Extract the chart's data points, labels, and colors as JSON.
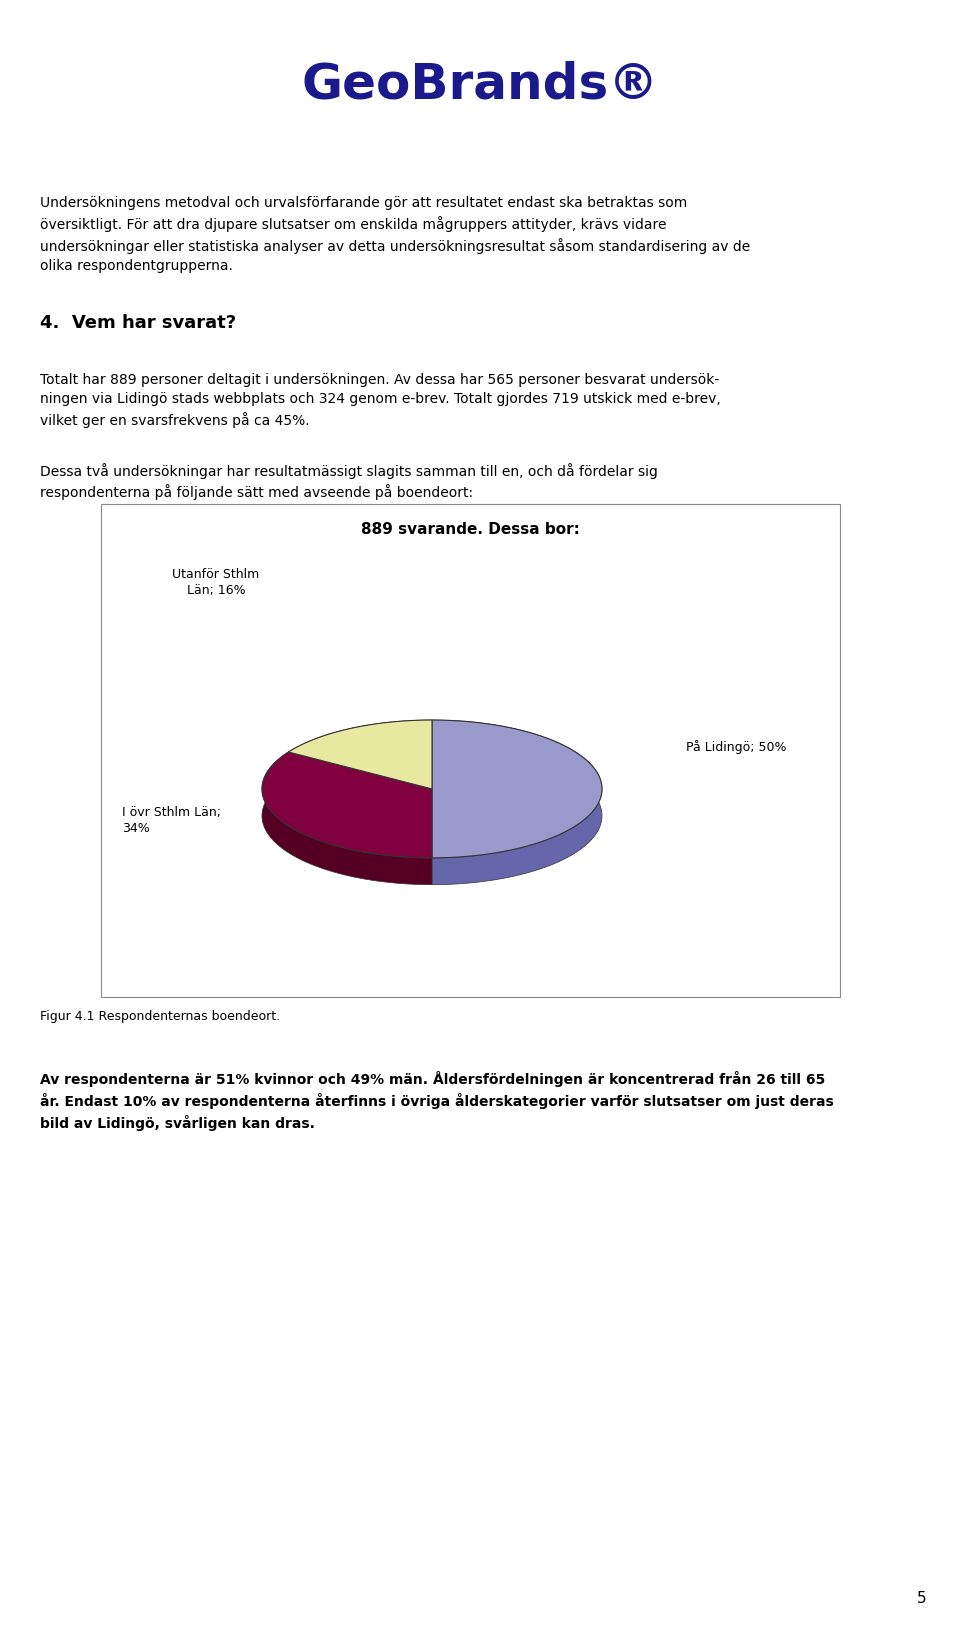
{
  "logo_text": "GeoBrands®",
  "logo_color": "#1a1a8c",
  "page_number": "5",
  "body_text_1a": "Undersökningens metodval och urvalsförfarande gör att resultatet endast ska betraktas som",
  "body_text_1b": "översiktligt. För att dra djupare slutsatser om enskilda mågruppers attityder, krävs vidare",
  "body_text_1c": "undersökningar eller statistiska analyser av detta undersökningsresultat såsom ",
  "body_text_1italic": "standardisering",
  "body_text_1d": " av de",
  "body_text_1e": "olika respondentgrupperna.",
  "section_heading": "4.  Vem har svarat?",
  "body_text_2": "Totalt har 889 personer deltagit i undersökningen. Av dessa har 565 personer besvarat undersök-\nningen via Lidingö stads webbplats och 324 genom e-brev. Totalt gjordes 719 utskick med e-brev,\nvilket ger en svarsfrekvens på ca 45%.",
  "body_text_3": "Dessa två undersökningar har resultatmässigt slagits samman till en, och då fördelar sig\nrespondenterna på följande sätt med avseende på boendeort:",
  "chart_title": "889 svarande. Dessa bor:",
  "pie_values": [
    50,
    34,
    16
  ],
  "pie_colors": [
    "#9999cc",
    "#800040",
    "#e8e8a0"
  ],
  "pie_shadow_colors": [
    "#6666aa",
    "#550022",
    "#b0b060"
  ],
  "pie_label_1": "På Lidingö; 50%",
  "pie_label_2": "I övr Sthlm Län;\n34%",
  "pie_label_3": "Utanför Sthlm\nLän; 16%",
  "figure_caption": "Figur 4.1 Respondenternas boendeort.",
  "body_text_4": "Av respondenterna är 51% kvinnor och 49% män. Åldersfördelningen är koncentrerad från 26 till 65\når. Endast 10% av respondenterna återfinns i övriga ålderskategorier varför slutsatser om just deras\nbild av Lidingö, svårligen kan dras.",
  "background_color": "#ffffff",
  "text_color": "#000000"
}
